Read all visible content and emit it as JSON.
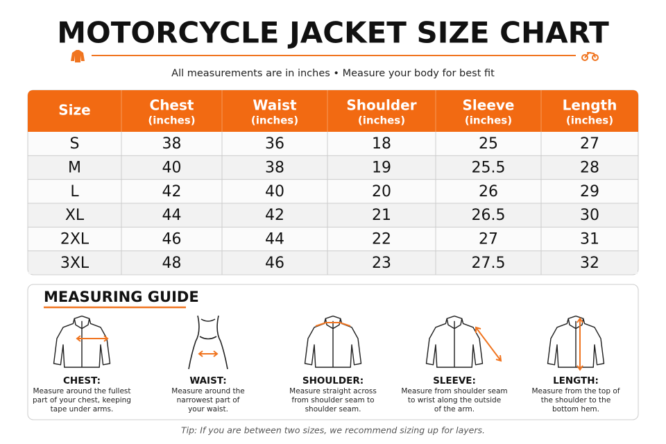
{
  "header": {
    "title": "MOTORCYCLE JACKET SIZE CHART",
    "subtitle": "All measurements are in inches • Measure your body for best fit"
  },
  "table": {
    "columns": [
      {
        "name": "Size"
      },
      {
        "name": "Chest",
        "unit": "(inches)"
      },
      {
        "name": "Waist",
        "unit": "(inches)"
      },
      {
        "name": "Shoulder",
        "unit": "(inches)"
      },
      {
        "name": "Sleeve",
        "unit": "(inches)"
      },
      {
        "name": "Length",
        "unit": "(inches)"
      }
    ],
    "rows": [
      [
        "S",
        "38",
        "36",
        "18",
        "25",
        "27"
      ],
      [
        "M",
        "40",
        "38",
        "19",
        "25.5",
        "28"
      ],
      [
        "L",
        "42",
        "40",
        "20",
        "26",
        "29"
      ],
      [
        "XL",
        "44",
        "42",
        "21",
        "26.5",
        "30"
      ],
      [
        "2XL",
        "46",
        "44",
        "22",
        "27",
        "31"
      ],
      [
        "3XL",
        "48",
        "46",
        "23",
        "27.5",
        "32"
      ]
    ]
  },
  "guide": {
    "title": "MEASURING GUIDE",
    "items": [
      {
        "label": "CHEST:",
        "description": [
          "Measure around the fullest",
          "part of your chest, keeping",
          "tape under arms."
        ]
      },
      {
        "label": "WAIST:",
        "description": [
          "Measure around the",
          "narrowest part of",
          "your waist."
        ]
      },
      {
        "label": "SHOULDER:",
        "description": [
          "Measure straight across",
          "from shoulder seam to",
          "shoulder seam."
        ]
      },
      {
        "label": "SLEEVE:",
        "description": [
          "Measure from shoulder seam",
          "to wrist along the outside",
          "of the arm."
        ]
      },
      {
        "label": "LENGTH:",
        "description": [
          "Measure from the top of",
          "the shoulder to the",
          "bottom hem."
        ]
      }
    ]
  },
  "tip": "Tip: If you are between two sizes, we recommend sizing up for layers."
}
